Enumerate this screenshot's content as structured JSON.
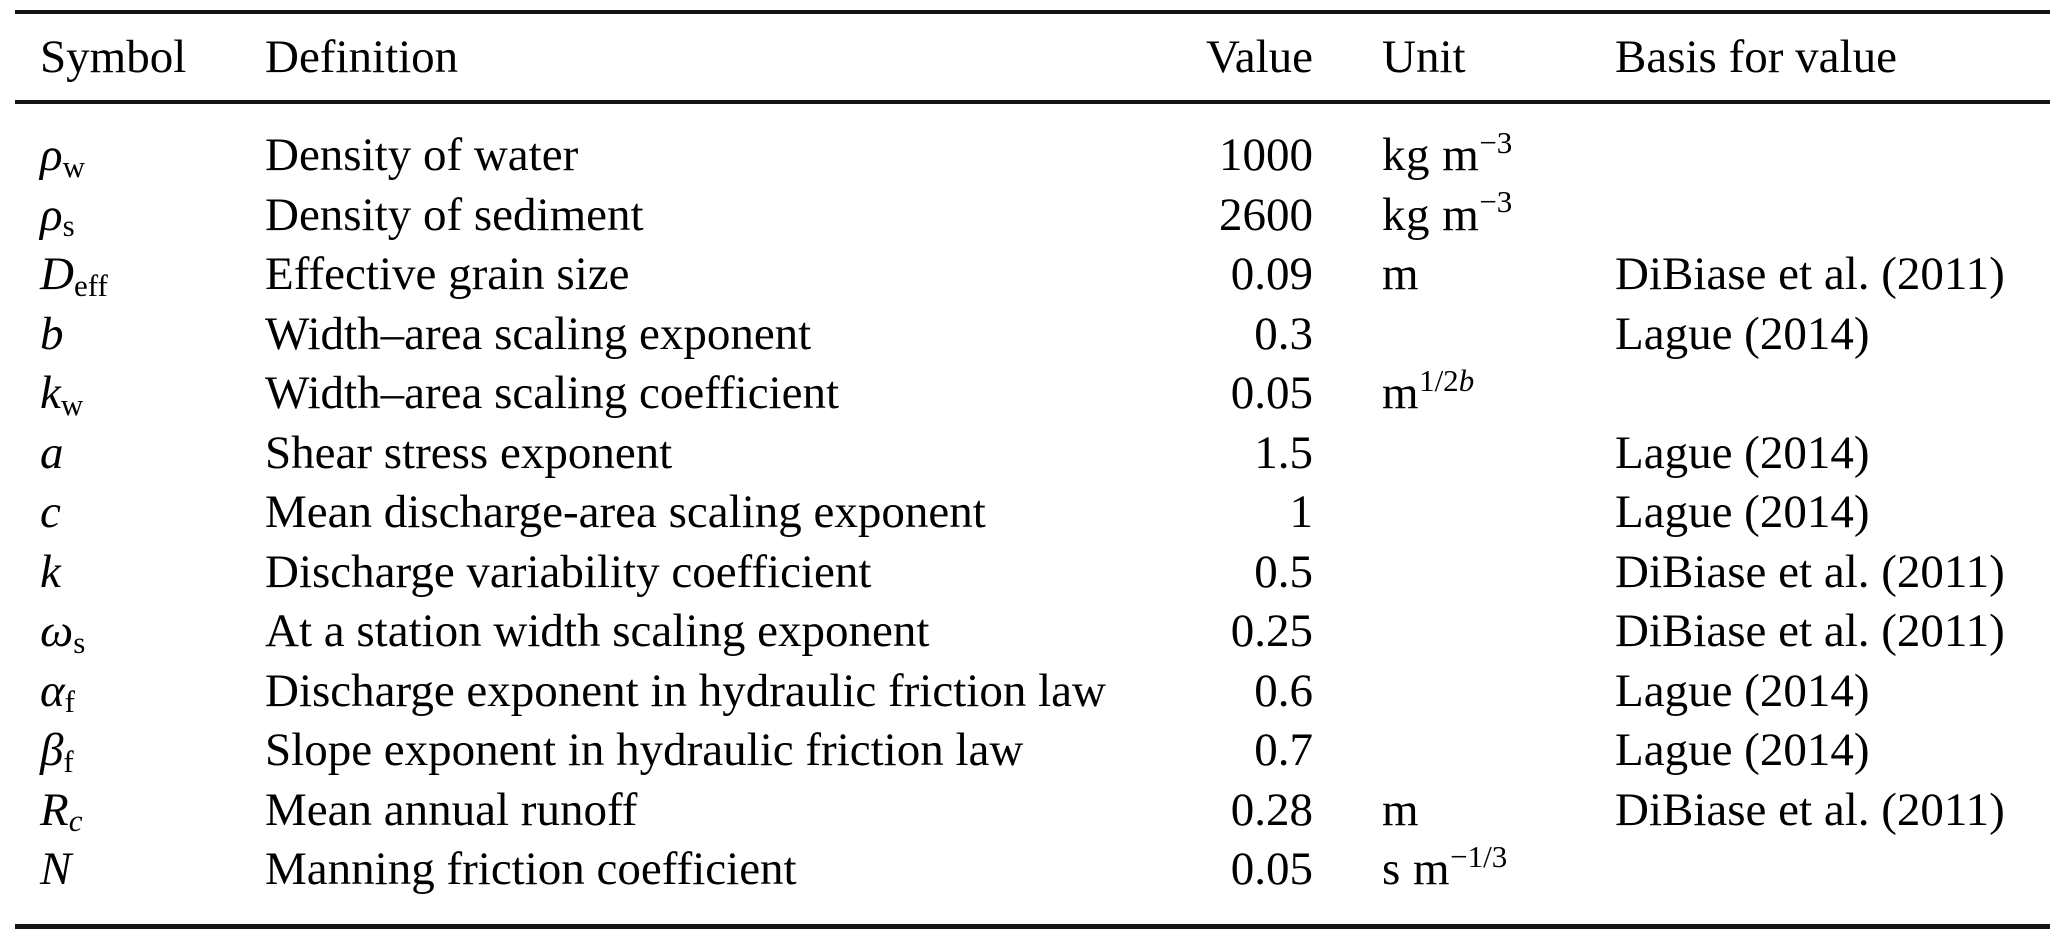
{
  "table": {
    "columns": [
      "Symbol",
      "Definition",
      "Value",
      "Unit",
      "Basis for value"
    ],
    "rows": [
      {
        "symbol_base": "ρ",
        "symbol_sub": "w",
        "definition": "Density of water",
        "value": "1000",
        "unit_base": "kg m",
        "unit_sup": "−3",
        "basis": ""
      },
      {
        "symbol_base": "ρ",
        "symbol_sub": "s",
        "definition": "Density of sediment",
        "value": "2600",
        "unit_base": "kg m",
        "unit_sup": "−3",
        "basis": ""
      },
      {
        "symbol_base": "D",
        "symbol_sub": "eff",
        "definition": "Effective grain size",
        "value": "0.09",
        "unit_base": "m",
        "unit_sup": "",
        "basis": "DiBiase et al. (2011)"
      },
      {
        "symbol_base": "b",
        "symbol_sub": "",
        "definition": "Width–area scaling exponent",
        "value": "0.3",
        "unit_base": "",
        "unit_sup": "",
        "basis": "Lague (2014)"
      },
      {
        "symbol_base": "k",
        "symbol_sub": "w",
        "definition": "Width–area scaling coefficient",
        "value": "0.05",
        "unit_base": "m",
        "unit_sup": "1/2",
        "unit_sup_it": "b",
        "basis": ""
      },
      {
        "symbol_base": "a",
        "symbol_sub": "",
        "definition": "Shear stress exponent",
        "value": "1.5",
        "unit_base": "",
        "unit_sup": "",
        "basis": "Lague (2014)"
      },
      {
        "symbol_base": "c",
        "symbol_sub": "",
        "definition": "Mean discharge-area scaling exponent",
        "value": "1",
        "unit_base": "",
        "unit_sup": "",
        "basis": "Lague (2014)"
      },
      {
        "symbol_base": "k",
        "symbol_sub": "",
        "definition": "Discharge variability coefficient",
        "value": "0.5",
        "unit_base": "",
        "unit_sup": "",
        "basis": "DiBiase et al. (2011)"
      },
      {
        "symbol_base": "ω",
        "symbol_sub": "s",
        "definition": "At a station width scaling exponent",
        "value": "0.25",
        "unit_base": "",
        "unit_sup": "",
        "basis": "DiBiase et al. (2011)"
      },
      {
        "symbol_base": "α",
        "symbol_sub": "f",
        "definition": "Discharge exponent in hydraulic friction law",
        "value": "0.6",
        "unit_base": "",
        "unit_sup": "",
        "basis": "Lague (2014)"
      },
      {
        "symbol_base": "β",
        "symbol_sub": "f",
        "definition": "Slope exponent in hydraulic friction law",
        "value": "0.7",
        "unit_base": "",
        "unit_sup": "",
        "basis": "Lague (2014)"
      },
      {
        "symbol_base": "R",
        "symbol_sub_it": "c",
        "definition": "Mean annual runoff",
        "value": "0.28",
        "unit_base": "m",
        "unit_sup": "",
        "basis": "DiBiase et al. (2011)"
      },
      {
        "symbol_base": "N",
        "symbol_sub": "",
        "definition": "Manning friction coefficient",
        "value": "0.05",
        "unit_base": "s m",
        "unit_sup": "−1/3",
        "basis": ""
      }
    ]
  },
  "colors": {
    "text": "#000000",
    "rule": "#141414",
    "background": "#ffffff"
  }
}
